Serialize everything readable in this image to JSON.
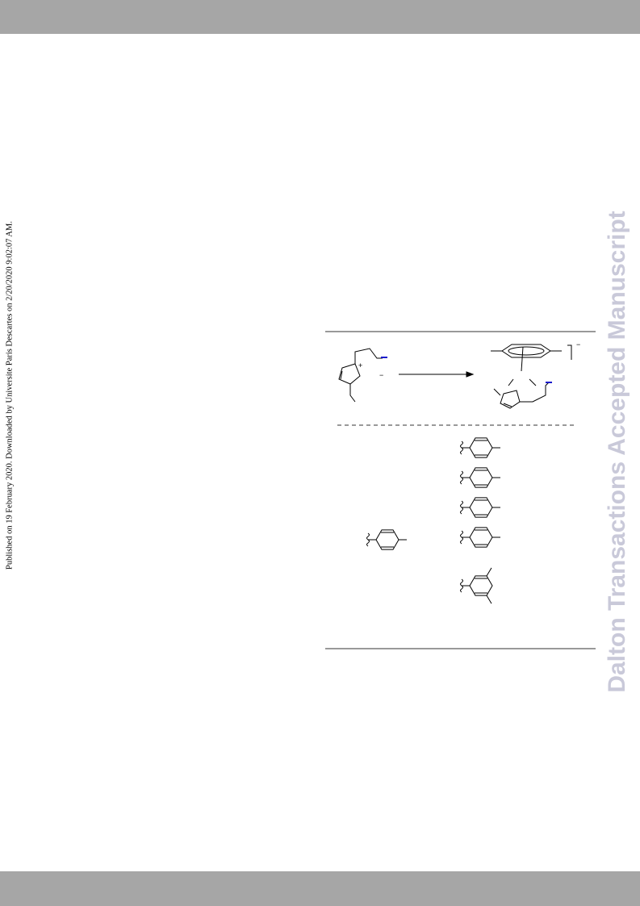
{
  "side_note": "Published on 19 February 2020. Downloaded by Universite Paris Descartes on 2/20/2020 9:02:07 AM.",
  "watermark": "Dalton Transactions Accepted Manuscript",
  "scheme": {
    "charges": [
      "+",
      "−",
      "−"
    ]
  }
}
